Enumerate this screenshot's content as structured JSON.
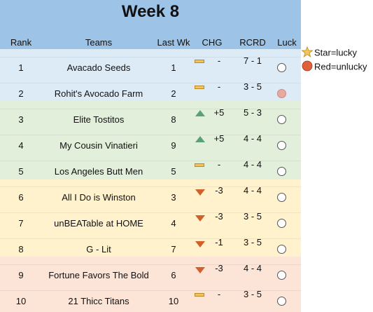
{
  "title": "Week 8",
  "headers": {
    "rank": "Rank",
    "teams": "Teams",
    "last_wk": "Last Wk",
    "chg": "CHG",
    "rcrd": "RCRD",
    "luck": "Luck"
  },
  "legend": {
    "lucky": "Star=lucky",
    "unlucky": "Red=unlucky"
  },
  "colors": {
    "header": "#9dc3e6",
    "tier_blue": "#ddebf7",
    "tier_green": "#e2efda",
    "tier_yellow": "#fff2cc",
    "tier_peach": "#fce4d6"
  },
  "rows": [
    {
      "rank": "1",
      "team": "Avacado Seeds",
      "last": "1",
      "trend": "flat",
      "chg": "-",
      "record": "7 - 1",
      "luck": "neutral",
      "tier": "blue"
    },
    {
      "rank": "2",
      "team": "Rohit's Avocado Farm",
      "last": "2",
      "trend": "flat",
      "chg": "-",
      "record": "3 - 5",
      "luck": "unlucky",
      "tier": "blue"
    },
    {
      "rank": "3",
      "team": "Elite Tostitos",
      "last": "8",
      "trend": "up",
      "chg": "+5",
      "record": "5 - 3",
      "luck": "neutral",
      "tier": "green"
    },
    {
      "rank": "4",
      "team": "My Cousin Vinatieri",
      "last": "9",
      "trend": "up",
      "chg": "+5",
      "record": "4 - 4",
      "luck": "neutral",
      "tier": "green"
    },
    {
      "rank": "5",
      "team": "Los Angeles Butt Men",
      "last": "5",
      "trend": "flat",
      "chg": "-",
      "record": "4 - 4",
      "luck": "neutral",
      "tier": "green"
    },
    {
      "rank": "6",
      "team": "All I Do is Winston",
      "last": "3",
      "trend": "down",
      "chg": "-3",
      "record": "4 - 4",
      "luck": "neutral",
      "tier": "yellow"
    },
    {
      "rank": "7",
      "team": "unBEATable at HOME",
      "last": "4",
      "trend": "down",
      "chg": "-3",
      "record": "3 - 5",
      "luck": "neutral",
      "tier": "yellow"
    },
    {
      "rank": "8",
      "team": "G - Lit",
      "last": "7",
      "trend": "down",
      "chg": "-1",
      "record": "3 - 5",
      "luck": "neutral",
      "tier": "yellow"
    },
    {
      "rank": "9",
      "team": "Fortune Favors The Bold",
      "last": "6",
      "trend": "down",
      "chg": "-3",
      "record": "4 - 4",
      "luck": "neutral",
      "tier": "peach"
    },
    {
      "rank": "10",
      "team": "21 Thicc Titans",
      "last": "10",
      "trend": "flat",
      "chg": "-",
      "record": "3 - 5",
      "luck": "neutral",
      "tier": "peach"
    }
  ]
}
